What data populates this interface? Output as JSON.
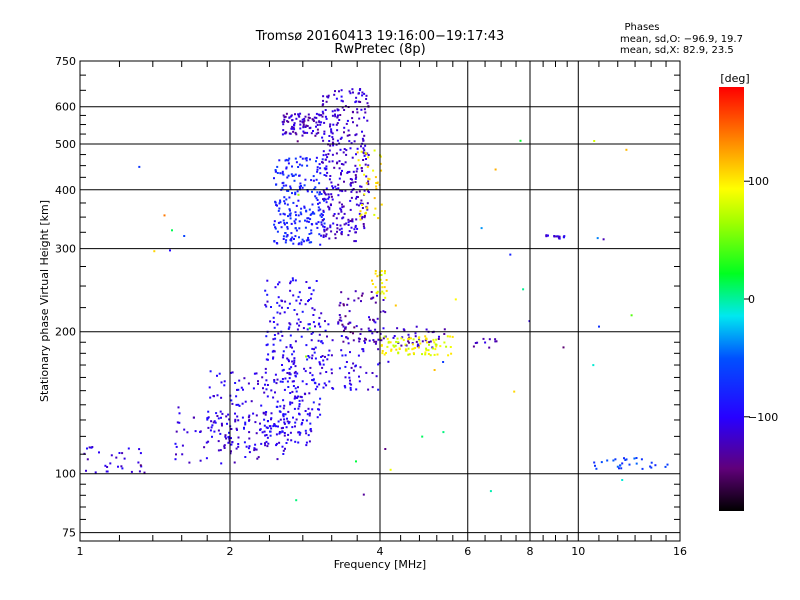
{
  "chart_data": {
    "type": "scatter",
    "title": "Tromsø 20160413 19:16:00−19:17:43",
    "subtitle": "RwPretec (8p)",
    "stats": {
      "heading": "Phases",
      "line_o": "mean, sd,O: −96.9, 19.7",
      "line_x": "mean, sd,X:  82.9, 23.5"
    },
    "xlabel": "Frequency [MHz]",
    "ylabel": "Stationary phase Virtual Height [km]",
    "x_scale": "log",
    "y_scale": "log",
    "xlim": [
      1,
      16
    ],
    "ylim": [
      72,
      750
    ],
    "grid": true,
    "x_ticks": [
      {
        "value": 1,
        "label": "1"
      },
      {
        "value": 2,
        "label": "2"
      },
      {
        "value": 4,
        "label": "4"
      },
      {
        "value": 6,
        "label": "6"
      },
      {
        "value": 8,
        "label": "8"
      },
      {
        "value": 10,
        "label": "10"
      },
      {
        "value": 16,
        "label": "16"
      }
    ],
    "y_ticks": [
      {
        "value": 75,
        "label": "75"
      },
      {
        "value": 100,
        "label": "100"
      },
      {
        "value": 200,
        "label": "200"
      },
      {
        "value": 300,
        "label": "300"
      },
      {
        "value": 400,
        "label": "400"
      },
      {
        "value": 500,
        "label": "500"
      },
      {
        "value": 600,
        "label": "600"
      },
      {
        "value": 750,
        "label": "750"
      }
    ],
    "colorbar": {
      "label": "[deg]",
      "range": [
        -180,
        180
      ],
      "ticks": [
        {
          "value": 100,
          "label": "100"
        },
        {
          "value": 0,
          "label": "0"
        },
        {
          "value": -100,
          "label": "−100"
        }
      ],
      "colormap": "rainbow (black-violet-blue-cyan-green-yellow-red)"
    },
    "point_groups": [
      {
        "name": "",
        "phase_deg": -110,
        "count": 30,
        "x_range": [
          1.02,
          1.35
        ],
        "y_range": [
          100,
          115
        ]
      },
      {
        "name": "",
        "phase_deg": -110,
        "count": 90,
        "x_range": [
          1.55,
          2.6
        ],
        "y_range": [
          105,
          135
        ]
      },
      {
        "name": "",
        "phase_deg": -105,
        "count": 170,
        "x_range": [
          1.8,
          2.9
        ],
        "y_range": [
          112,
          165
        ]
      },
      {
        "name": "",
        "phase_deg": -100,
        "count": 230,
        "x_range": [
          2.35,
          3.05
        ],
        "y_range": [
          120,
          260
        ]
      },
      {
        "name": "",
        "phase_deg": -105,
        "count": 100,
        "x_range": [
          2.9,
          4.0
        ],
        "y_range": [
          150,
          215
        ]
      },
      {
        "name": "",
        "phase_deg": -130,
        "count": 50,
        "x_range": [
          3.3,
          4.1
        ],
        "y_range": [
          190,
          245
        ]
      },
      {
        "name": "",
        "phase_deg": -120,
        "count": 45,
        "x_range": [
          3.9,
          5.4
        ],
        "y_range": [
          185,
          205
        ]
      },
      {
        "name": "",
        "phase_deg": 90,
        "count": 85,
        "x_range": [
          3.95,
          5.6
        ],
        "y_range": [
          178,
          196
        ]
      },
      {
        "name": "",
        "phase_deg": 95,
        "count": 25,
        "x_range": [
          3.85,
          4.15
        ],
        "y_range": [
          235,
          270
        ]
      },
      {
        "name": "",
        "phase_deg": -80,
        "count": 230,
        "x_range": [
          2.45,
          3.1
        ],
        "y_range": [
          305,
          470
        ]
      },
      {
        "name": "",
        "phase_deg": -120,
        "count": 90,
        "x_range": [
          2.55,
          3.05
        ],
        "y_range": [
          520,
          580
        ]
      },
      {
        "name": "",
        "phase_deg": -115,
        "count": 330,
        "x_range": [
          3.05,
          3.8
        ],
        "y_range": [
          310,
          655
        ]
      },
      {
        "name": "",
        "phase_deg": 100,
        "count": 40,
        "x_range": [
          3.6,
          4.05
        ],
        "y_range": [
          345,
          490
        ]
      },
      {
        "name": "",
        "phase_deg": -110,
        "count": 18,
        "x_range": [
          8.6,
          9.4
        ],
        "y_range": [
          315,
          322
        ]
      },
      {
        "name": "",
        "phase_deg": -120,
        "count": 10,
        "x_range": [
          6.1,
          6.9
        ],
        "y_range": [
          184,
          194
        ]
      },
      {
        "name": "",
        "phase_deg": -60,
        "count": 28,
        "x_range": [
          10.4,
          15.2
        ],
        "y_range": [
          102,
          108
        ]
      },
      {
        "name": "",
        "phase_deg": 20,
        "count": 45,
        "x_range": [
          1.2,
          13.0
        ],
        "y_range": [
          85,
          600
        ]
      }
    ]
  }
}
